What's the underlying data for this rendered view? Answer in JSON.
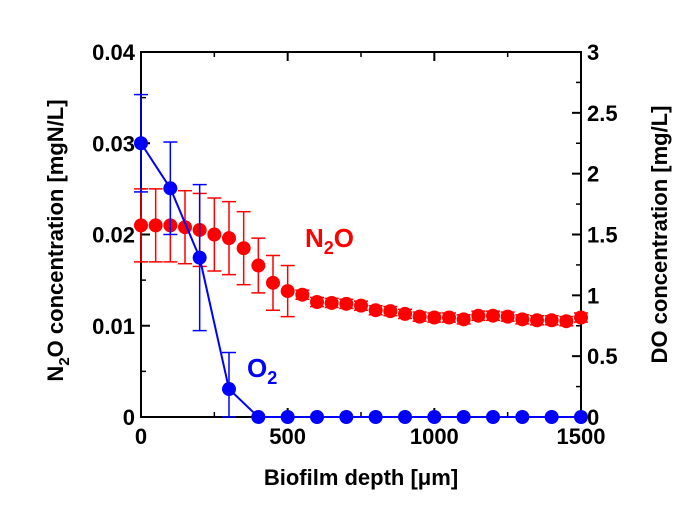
{
  "chart_data": {
    "type": "scatter",
    "xlabel": "Biofilm depth [μm]",
    "ylabel": "N2O concentration [mgN/L]",
    "ylabel_parts": {
      "pre": "N",
      "sub": "2",
      "post": "O concentration [mgN/L]"
    },
    "y2label": "DO concentration [mg/L]",
    "xlim": [
      0,
      1500
    ],
    "ylim": [
      0,
      0.04
    ],
    "y2lim": [
      0,
      3
    ],
    "xticks": [
      0,
      500,
      1000,
      1500
    ],
    "xtick_labels": [
      "0",
      "500",
      "1000",
      "1500"
    ],
    "yticks": [
      0,
      0.01,
      0.02,
      0.03,
      0.04
    ],
    "ytick_labels": [
      "0",
      "0.01",
      "0.02",
      "0.03",
      "0.04"
    ],
    "y2ticks": [
      0,
      0.5,
      1,
      1.5,
      2,
      2.5,
      3
    ],
    "y2tick_labels": [
      "0",
      "0.5",
      "1",
      "1.5",
      "2",
      "2.5",
      "3"
    ],
    "grid": false,
    "series": [
      {
        "name": "N2O",
        "label_parts": {
          "pre": "N",
          "sub": "2",
          "post": "O"
        },
        "axis": "left",
        "color": "#ff0000",
        "line": false,
        "x": [
          0,
          50,
          100,
          150,
          200,
          250,
          300,
          350,
          400,
          450,
          500,
          550,
          600,
          650,
          700,
          750,
          800,
          850,
          900,
          950,
          1000,
          1050,
          1100,
          1150,
          1200,
          1250,
          1300,
          1350,
          1400,
          1450,
          1500
        ],
        "y": [
          0.021,
          0.021,
          0.021,
          0.0208,
          0.0205,
          0.02,
          0.0196,
          0.0185,
          0.0166,
          0.0147,
          0.0138,
          0.0134,
          0.0126,
          0.0125,
          0.0124,
          0.0122,
          0.0117,
          0.0116,
          0.0113,
          0.011,
          0.0109,
          0.0109,
          0.0107,
          0.0111,
          0.0111,
          0.011,
          0.0107,
          0.0106,
          0.0106,
          0.0105,
          0.0109
        ],
        "err": [
          0.004,
          0.004,
          0.004,
          0.004,
          0.004,
          0.004,
          0.004,
          0.004,
          0.003,
          0.003,
          0.0028,
          0.0005,
          0.0005,
          0.0005,
          0.0005,
          0.0005,
          0.0005,
          0.0005,
          0.0005,
          0.0005,
          0.0005,
          0.0005,
          0.0005,
          0.0005,
          0.0005,
          0.0005,
          0.0005,
          0.0005,
          0.0005,
          0.0005,
          0.0005
        ]
      },
      {
        "name": "O2",
        "label_parts": {
          "pre": "O",
          "sub": "2",
          "post": ""
        },
        "axis": "right",
        "color": "#0000ff",
        "line": true,
        "x": [
          0,
          100,
          200,
          300,
          400,
          500,
          600,
          700,
          800,
          900,
          1000,
          1100,
          1200,
          1300,
          1400,
          1500
        ],
        "y": [
          2.25,
          1.88,
          1.31,
          0.23,
          0.0,
          0.0,
          0.0,
          0.0,
          0.0,
          0.0,
          0.0,
          0.0,
          0.0,
          0.0,
          0.0,
          0.0
        ],
        "err": [
          0.4,
          0.38,
          0.6,
          0.3,
          0,
          0,
          0,
          0,
          0,
          0,
          0,
          0,
          0,
          0,
          0,
          0
        ]
      }
    ]
  }
}
